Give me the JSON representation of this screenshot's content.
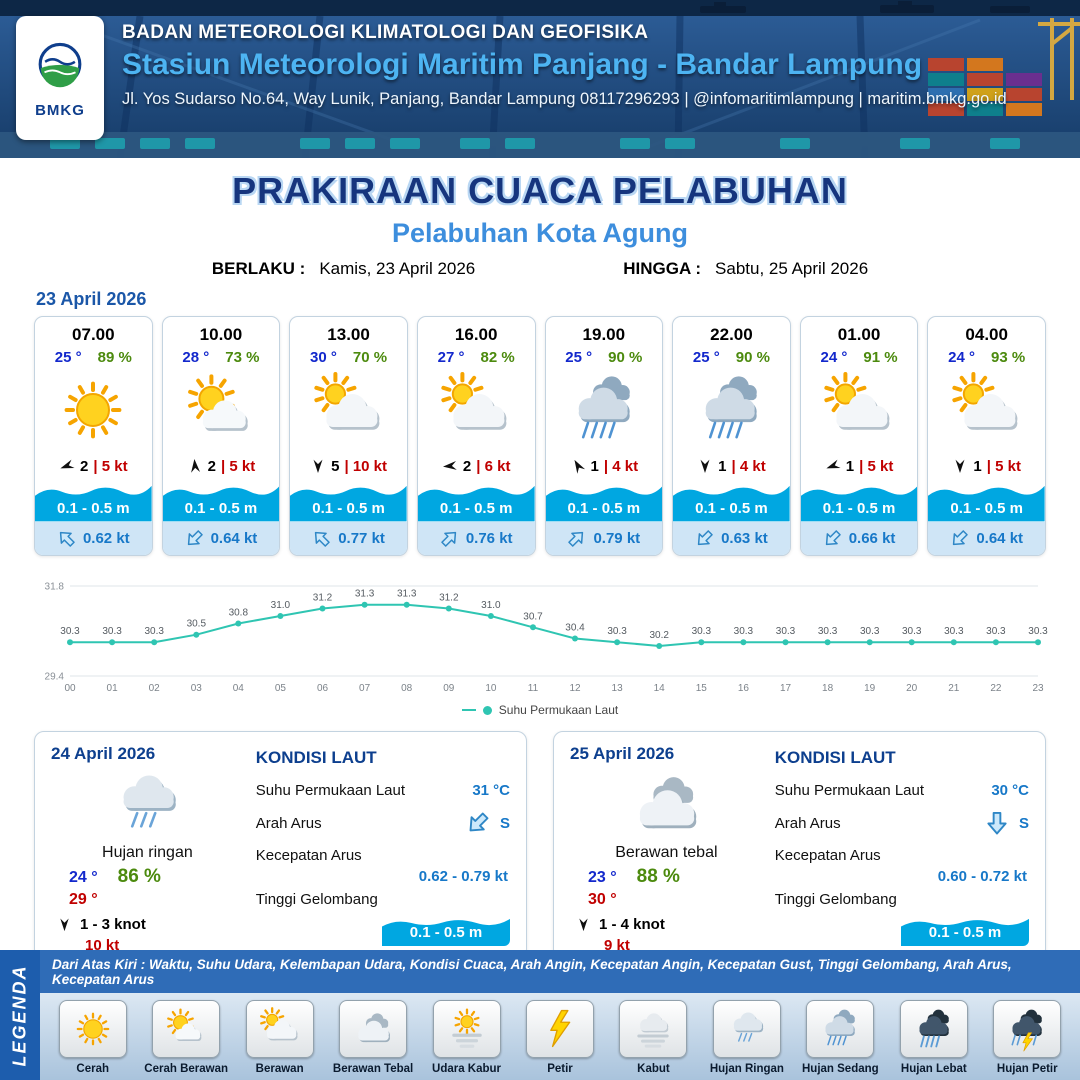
{
  "header": {
    "logo_label": "BMKG",
    "org": "BADAN METEOROLOGI KLIMATOLOGI DAN GEOFISIKA",
    "station": "Stasiun Meteorologi Maritim Panjang - Bandar Lampung",
    "address": "Jl. Yos Sudarso No.64, Way Lunik, Panjang, Bandar Lampung 08117296293 | @infomaritimlampung | maritim.bmkg.go.id"
  },
  "title": {
    "main": "PRAKIRAAN CUACA PELABUHAN",
    "port": "Pelabuhan Kota Agung",
    "valid_label": "BERLAKU :",
    "valid_value": "Kamis, 23 April 2026",
    "until_label": "HINGGA :",
    "until_value": "Sabtu, 25 April 2026"
  },
  "colors": {
    "accent_blue": "#1778c8",
    "navy": "#0d3f8e",
    "temp_blue": "#1328cc",
    "humidity_green": "#4c8a0e",
    "alert_red": "#c00000",
    "wave_blue": "#00a7e1"
  },
  "forecast": {
    "date": "23 April 2026",
    "cards": [
      {
        "time": "07.00",
        "temp": "25 °",
        "rh": "89 %",
        "icon": "cerah",
        "wind_deg": 250,
        "wind_val": "2",
        "wind_kt": "| 5 kt",
        "wave": "0.1 - 0.5 m",
        "cur_deg": 315,
        "cur": "0.62 kt"
      },
      {
        "time": "10.00",
        "temp": "28 °",
        "rh": "73 %",
        "icon": "cerah-berawan",
        "wind_deg": 355,
        "wind_val": "2",
        "wind_kt": "| 5 kt",
        "wave": "0.1 - 0.5 m",
        "cur_deg": 225,
        "cur": "0.64 kt"
      },
      {
        "time": "13.00",
        "temp": "30 °",
        "rh": "70 %",
        "icon": "berawan",
        "wind_deg": 180,
        "wind_val": "5",
        "wind_kt": "| 10 kt",
        "wave": "0.1 - 0.5 m",
        "cur_deg": 315,
        "cur": "0.77 kt"
      },
      {
        "time": "16.00",
        "temp": "27 °",
        "rh": "82 %",
        "icon": "berawan",
        "wind_deg": 265,
        "wind_val": "2",
        "wind_kt": "| 6 kt",
        "wave": "0.1 - 0.5 m",
        "cur_deg": 45,
        "cur": "0.76 kt"
      },
      {
        "time": "19.00",
        "temp": "25 °",
        "rh": "90 %",
        "icon": "hujan-sedang",
        "wind_deg": 330,
        "wind_val": "1",
        "wind_kt": "| 4 kt",
        "wave": "0.1 - 0.5 m",
        "cur_deg": 45,
        "cur": "0.79 kt"
      },
      {
        "time": "22.00",
        "temp": "25 °",
        "rh": "90 %",
        "icon": "hujan-sedang",
        "wind_deg": 180,
        "wind_val": "1",
        "wind_kt": "| 4 kt",
        "wave": "0.1 - 0.5 m",
        "cur_deg": 225,
        "cur": "0.63 kt"
      },
      {
        "time": "01.00",
        "temp": "24 °",
        "rh": "91 %",
        "icon": "berawan",
        "wind_deg": 250,
        "wind_val": "1",
        "wind_kt": "| 5 kt",
        "wave": "0.1 - 0.5 m",
        "cur_deg": 225,
        "cur": "0.66 kt"
      },
      {
        "time": "04.00",
        "temp": "24 °",
        "rh": "93 %",
        "icon": "berawan",
        "wind_deg": 180,
        "wind_val": "1",
        "wind_kt": "| 5 kt",
        "wave": "0.1 - 0.5 m",
        "cur_deg": 225,
        "cur": "0.64 kt"
      }
    ]
  },
  "chart_data": {
    "type": "line",
    "x": [
      "00",
      "01",
      "02",
      "03",
      "04",
      "05",
      "06",
      "07",
      "08",
      "09",
      "10",
      "11",
      "12",
      "13",
      "14",
      "15",
      "16",
      "17",
      "18",
      "19",
      "20",
      "21",
      "22",
      "23"
    ],
    "series": [
      {
        "name": "Suhu Permukaan Laut",
        "values": [
          30.3,
          30.3,
          30.3,
          30.5,
          30.8,
          31.0,
          31.2,
          31.3,
          31.3,
          31.2,
          31.0,
          30.7,
          30.4,
          30.3,
          30.2,
          30.3,
          30.3,
          30.3,
          30.3,
          30.3,
          30.3,
          30.3,
          30.3,
          30.3
        ]
      }
    ],
    "ylim": [
      29.4,
      31.8
    ],
    "yticks": [
      29.4,
      31.8
    ],
    "line_color": "#2fc5b2",
    "grid": true,
    "legend_position": "bottom"
  },
  "days": [
    {
      "date": "24 April 2026",
      "icon": "hujan-ringan",
      "cond": "Hujan ringan",
      "tmin": "24 °",
      "rh": "86 %",
      "tmax": "29 °",
      "wind_deg": 180,
      "wind": "1  - 3 knot",
      "gust": "10 kt",
      "sea": {
        "title": "KONDISI LAUT",
        "sst_label": "Suhu Permukaan Laut",
        "sst": "31 °C",
        "cur_dir_label": "Arah Arus",
        "cur_dir_deg": 225,
        "cur_dir": "S",
        "cur_label": "Kecepatan Arus",
        "cur": "0.62 - 0.79 kt",
        "wave_label": "Tinggi Gelombang",
        "wave": "0.1 - 0.5 m"
      }
    },
    {
      "date": "25 April 2026",
      "icon": "berawan-tebal",
      "cond": "Berawan tebal",
      "tmin": "23 °",
      "rh": "88 %",
      "tmax": "30 °",
      "wind_deg": 180,
      "wind": "1  - 4 knot",
      "gust": "9 kt",
      "sea": {
        "title": "KONDISI LAUT",
        "sst_label": "Suhu Permukaan Laut",
        "sst": "30 °C",
        "cur_dir_label": "Arah Arus",
        "cur_dir_deg": 180,
        "cur_dir": "S",
        "cur_label": "Kecepatan Arus",
        "cur": "0.60  -  0.72 kt",
        "wave_label": "Tinggi Gelombang",
        "wave": "0.1 - 0.5 m"
      }
    }
  ],
  "legend": {
    "title": "LEGENDA",
    "desc": "Dari Atas Kiri : Waktu, Suhu Udara, Kelembapan Udara, Kondisi Cuaca, Arah Angin, Kecepatan Angin, Kecepatan Gust, Tinggi Gelombang, Arah Arus, Kecepatan Arus",
    "items": [
      {
        "label": "Cerah",
        "icon": "cerah"
      },
      {
        "label": "Cerah Berawan",
        "icon": "cerah-berawan"
      },
      {
        "label": "Berawan",
        "icon": "berawan"
      },
      {
        "label": "Berawan Tebal",
        "icon": "berawan-tebal"
      },
      {
        "label": "Udara Kabur",
        "icon": "udara-kabur"
      },
      {
        "label": "Petir",
        "icon": "petir"
      },
      {
        "label": "Kabut",
        "icon": "kabut"
      },
      {
        "label": "Hujan Ringan",
        "icon": "hujan-ringan"
      },
      {
        "label": "Hujan Sedang",
        "icon": "hujan-sedang"
      },
      {
        "label": "Hujan Lebat",
        "icon": "hujan-lebat"
      },
      {
        "label": "Hujan Petir",
        "icon": "hujan-petir"
      }
    ]
  }
}
